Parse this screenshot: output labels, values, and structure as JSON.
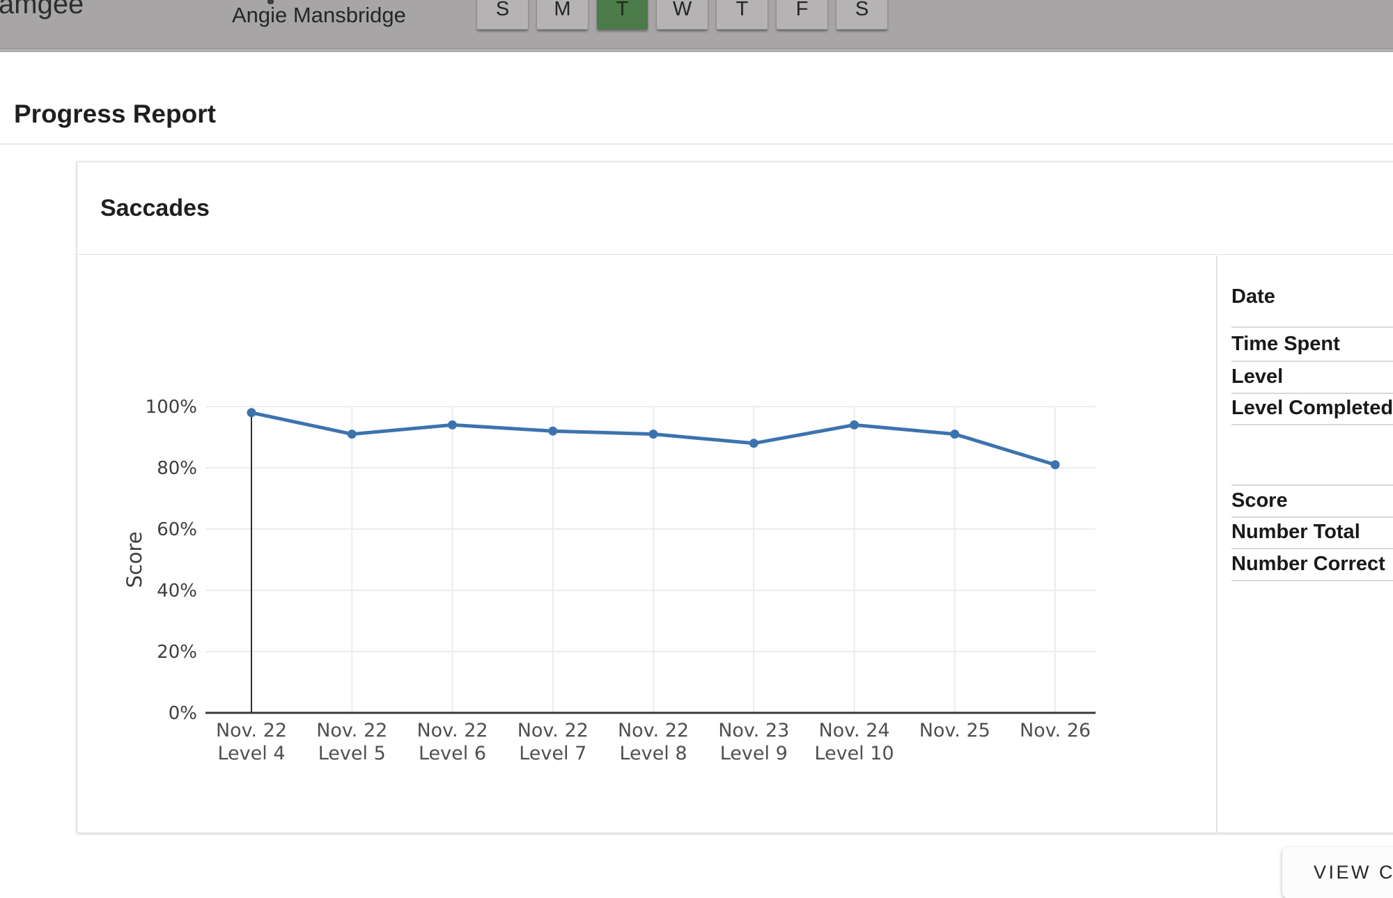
{
  "topbar": {
    "student_name_partial": "amgee",
    "teacher_name": "Angie Mansbridge",
    "days": [
      {
        "label": "S",
        "active": false
      },
      {
        "label": "M",
        "active": false
      },
      {
        "label": "T",
        "active": true
      },
      {
        "label": "W",
        "active": false
      },
      {
        "label": "T",
        "active": false
      },
      {
        "label": "F",
        "active": false
      },
      {
        "label": "S",
        "active": false
      }
    ],
    "colors": {
      "bar_bg": "#a7a5a5",
      "button_bg": "#b5b3b3",
      "active_day_bg": "#4a7b48"
    }
  },
  "page": {
    "title": "Progress Report"
  },
  "card": {
    "title": "Saccades",
    "details_panel": {
      "rows": [
        "Date",
        "Time Spent",
        "Level",
        "Level Completed",
        "",
        "Score",
        "Number Total",
        "Number Correct"
      ]
    },
    "action_button": {
      "label": "VIEW CO"
    }
  },
  "chart_data": {
    "type": "line",
    "title": "Saccades",
    "ylabel": "Score",
    "xlabel": "",
    "ylim": [
      0,
      100
    ],
    "y_tick_labels": [
      "0%",
      "20%",
      "40%",
      "60%",
      "80%",
      "100%"
    ],
    "grid": true,
    "legend": "none",
    "line_color": "#3c73ae",
    "point_color": "#3c73ae",
    "grid_color": "#ececec",
    "axis_color": "#3a3a3a",
    "selection_line_color": "#2d2d2d",
    "selected_index": 0,
    "points": [
      {
        "date": "Nov. 22",
        "level": "Level 4",
        "score_pct": 98
      },
      {
        "date": "Nov. 22",
        "level": "Level 5",
        "score_pct": 91
      },
      {
        "date": "Nov. 22",
        "level": "Level 6",
        "score_pct": 94
      },
      {
        "date": "Nov. 22",
        "level": "Level 7",
        "score_pct": 92
      },
      {
        "date": "Nov. 22",
        "level": "Level 8",
        "score_pct": 91
      },
      {
        "date": "Nov. 23",
        "level": "Level 9",
        "score_pct": 88
      },
      {
        "date": "Nov. 24",
        "level": "Level 10",
        "score_pct": 94
      },
      {
        "date": "Nov. 25",
        "level": "",
        "score_pct": 91
      },
      {
        "date": "Nov. 26",
        "level": "",
        "score_pct": 81
      }
    ]
  }
}
